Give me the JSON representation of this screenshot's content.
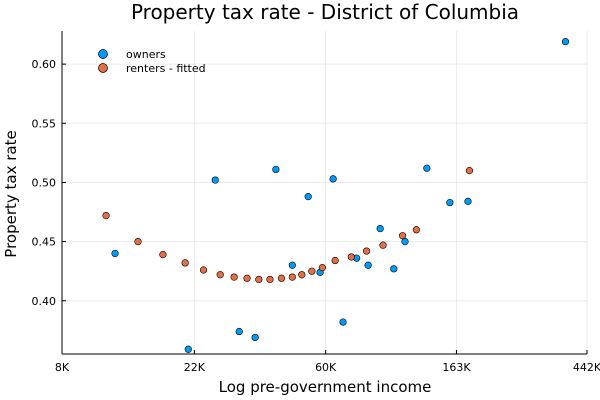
{
  "chart_data": {
    "type": "scatter",
    "title": "Property tax rate - District of Columbia",
    "xlabel": "Log pre-government income",
    "ylabel": "Property tax rate",
    "x_scale": "log",
    "xlim": [
      8000,
      442000
    ],
    "ylim": [
      0.355,
      0.628
    ],
    "x_ticks": [
      {
        "value": 8000,
        "label": "8K"
      },
      {
        "value": 22000,
        "label": "22K"
      },
      {
        "value": 60000,
        "label": "60K"
      },
      {
        "value": 163000,
        "label": "163K"
      },
      {
        "value": 442000,
        "label": "442K"
      }
    ],
    "y_ticks": [
      {
        "value": 0.4,
        "label": "0.40"
      },
      {
        "value": 0.45,
        "label": "0.45"
      },
      {
        "value": 0.5,
        "label": "0.50"
      },
      {
        "value": 0.55,
        "label": "0.55"
      },
      {
        "value": 0.6,
        "label": "0.60"
      }
    ],
    "grid": true,
    "legend_position": "top-left",
    "series": [
      {
        "name": "owners",
        "color": "#009af9",
        "points": [
          {
            "x": 12000,
            "y": 0.44
          },
          {
            "x": 21000,
            "y": 0.359
          },
          {
            "x": 25800,
            "y": 0.502
          },
          {
            "x": 31000,
            "y": 0.374
          },
          {
            "x": 35000,
            "y": 0.369
          },
          {
            "x": 41000,
            "y": 0.511
          },
          {
            "x": 46500,
            "y": 0.43
          },
          {
            "x": 52500,
            "y": 0.488
          },
          {
            "x": 57500,
            "y": 0.424
          },
          {
            "x": 63500,
            "y": 0.503
          },
          {
            "x": 68500,
            "y": 0.382
          },
          {
            "x": 76000,
            "y": 0.436
          },
          {
            "x": 83000,
            "y": 0.43
          },
          {
            "x": 91000,
            "y": 0.461
          },
          {
            "x": 101000,
            "y": 0.427
          },
          {
            "x": 110000,
            "y": 0.45
          },
          {
            "x": 130000,
            "y": 0.512
          },
          {
            "x": 155000,
            "y": 0.483
          },
          {
            "x": 178000,
            "y": 0.484
          },
          {
            "x": 375000,
            "y": 0.619
          }
        ]
      },
      {
        "name": "renters - fitted",
        "color": "#e26f46",
        "points": [
          {
            "x": 11200,
            "y": 0.472
          },
          {
            "x": 14300,
            "y": 0.45
          },
          {
            "x": 17300,
            "y": 0.439
          },
          {
            "x": 20500,
            "y": 0.432
          },
          {
            "x": 23600,
            "y": 0.426
          },
          {
            "x": 26800,
            "y": 0.422
          },
          {
            "x": 29800,
            "y": 0.42
          },
          {
            "x": 32900,
            "y": 0.419
          },
          {
            "x": 36000,
            "y": 0.418
          },
          {
            "x": 39200,
            "y": 0.418
          },
          {
            "x": 42800,
            "y": 0.419
          },
          {
            "x": 46500,
            "y": 0.42
          },
          {
            "x": 50000,
            "y": 0.422
          },
          {
            "x": 54000,
            "y": 0.425
          },
          {
            "x": 58500,
            "y": 0.428
          },
          {
            "x": 64500,
            "y": 0.434
          },
          {
            "x": 73000,
            "y": 0.437
          },
          {
            "x": 82000,
            "y": 0.442
          },
          {
            "x": 93000,
            "y": 0.447
          },
          {
            "x": 108000,
            "y": 0.455
          },
          {
            "x": 120000,
            "y": 0.46
          },
          {
            "x": 180000,
            "y": 0.51
          }
        ]
      }
    ]
  }
}
